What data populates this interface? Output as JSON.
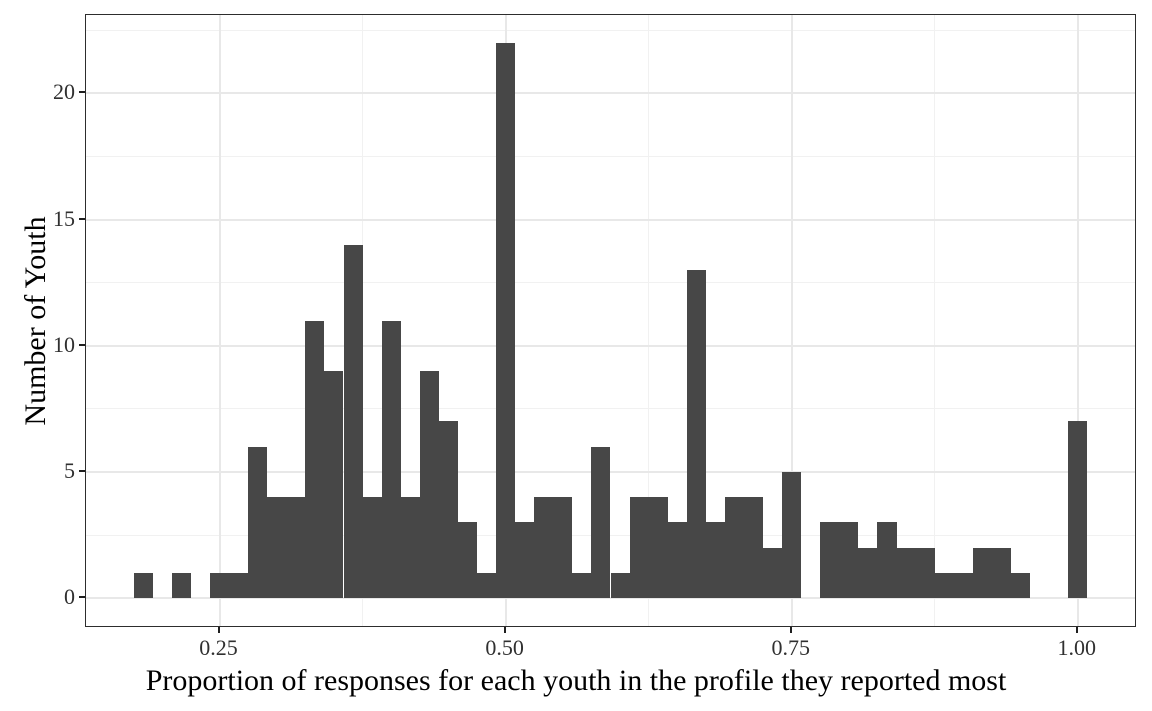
{
  "chart_data": {
    "type": "bar",
    "subtype": "histogram",
    "title": "",
    "xlabel": "Proportion of responses for each youth in the profile they reported most",
    "ylabel": "Number of Youth",
    "legend": "none",
    "grid": "on",
    "bar_color": "#474747",
    "panel_border_color": "#2d2d2d",
    "grid_major_color": "#e8e8e8",
    "grid_minor_color": "#f1f1f1",
    "tick_color": "#1f1f1f",
    "tick_label_color": "#303030",
    "axis_title_color": "#000000",
    "binwidth": 0.0166667,
    "x_domain": [
      0.13333,
      1.05
    ],
    "y_domain": [
      -1.1,
      23.1
    ],
    "xlim_data": [
      0.175,
      1.00833
    ],
    "ylim": [
      0,
      22
    ],
    "x_breaks": [
      {
        "value": 0.25,
        "label": "0.25"
      },
      {
        "value": 0.5,
        "label": "0.50"
      },
      {
        "value": 0.75,
        "label": "0.75"
      },
      {
        "value": 1.0,
        "label": "1.00"
      }
    ],
    "y_breaks": [
      {
        "value": 0,
        "label": "0"
      },
      {
        "value": 5,
        "label": "5"
      },
      {
        "value": 10,
        "label": "10"
      },
      {
        "value": 15,
        "label": "15"
      },
      {
        "value": 20,
        "label": "20"
      }
    ],
    "x_minor": [
      0.375,
      0.625,
      0.875
    ],
    "y_minor": [
      2.5,
      7.5,
      12.5,
      17.5,
      22.5
    ],
    "bins": [
      {
        "center": 0.1833,
        "count": 1
      },
      {
        "center": 0.2,
        "count": 0
      },
      {
        "center": 0.2167,
        "count": 1
      },
      {
        "center": 0.2333,
        "count": 0
      },
      {
        "center": 0.25,
        "count": 1
      },
      {
        "center": 0.2667,
        "count": 1
      },
      {
        "center": 0.2833,
        "count": 6
      },
      {
        "center": 0.3,
        "count": 4
      },
      {
        "center": 0.3167,
        "count": 4
      },
      {
        "center": 0.3333,
        "count": 11
      },
      {
        "center": 0.35,
        "count": 9
      },
      {
        "center": 0.3667,
        "count": 14
      },
      {
        "center": 0.3833,
        "count": 4
      },
      {
        "center": 0.4,
        "count": 11
      },
      {
        "center": 0.4167,
        "count": 4
      },
      {
        "center": 0.4333,
        "count": 9
      },
      {
        "center": 0.45,
        "count": 7
      },
      {
        "center": 0.4667,
        "count": 3
      },
      {
        "center": 0.4833,
        "count": 1
      },
      {
        "center": 0.5,
        "count": 22
      },
      {
        "center": 0.5167,
        "count": 3
      },
      {
        "center": 0.5333,
        "count": 4
      },
      {
        "center": 0.55,
        "count": 4
      },
      {
        "center": 0.5667,
        "count": 1
      },
      {
        "center": 0.5833,
        "count": 6
      },
      {
        "center": 0.6,
        "count": 1
      },
      {
        "center": 0.6167,
        "count": 4
      },
      {
        "center": 0.6333,
        "count": 4
      },
      {
        "center": 0.65,
        "count": 3
      },
      {
        "center": 0.6667,
        "count": 13
      },
      {
        "center": 0.6833,
        "count": 3
      },
      {
        "center": 0.7,
        "count": 4
      },
      {
        "center": 0.7167,
        "count": 4
      },
      {
        "center": 0.7333,
        "count": 2
      },
      {
        "center": 0.75,
        "count": 5
      },
      {
        "center": 0.7667,
        "count": 0
      },
      {
        "center": 0.7833,
        "count": 3
      },
      {
        "center": 0.8,
        "count": 3
      },
      {
        "center": 0.8167,
        "count": 2
      },
      {
        "center": 0.8333,
        "count": 3
      },
      {
        "center": 0.85,
        "count": 2
      },
      {
        "center": 0.8667,
        "count": 2
      },
      {
        "center": 0.8833,
        "count": 1
      },
      {
        "center": 0.9,
        "count": 1
      },
      {
        "center": 0.9167,
        "count": 2
      },
      {
        "center": 0.9333,
        "count": 2
      },
      {
        "center": 0.95,
        "count": 1
      },
      {
        "center": 0.9667,
        "count": 0
      },
      {
        "center": 0.9833,
        "count": 0
      },
      {
        "center": 1.0,
        "count": 7
      }
    ]
  }
}
